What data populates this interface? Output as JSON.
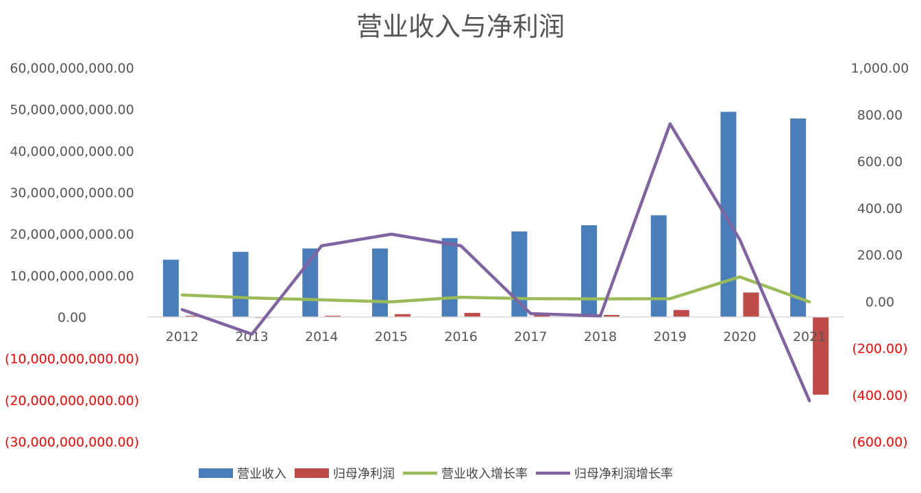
{
  "chart_data": {
    "type": "bar",
    "title": "营业收入与净利润",
    "categories": [
      "2012",
      "2013",
      "2014",
      "2015",
      "2016",
      "2017",
      "2018",
      "2019",
      "2020",
      "2021"
    ],
    "series": [
      {
        "name": "营业收入",
        "kind": "bar",
        "axis": "left",
        "color": "#4a7ebb",
        "values": [
          13800000000,
          15700000000,
          16500000000,
          16500000000,
          19000000000,
          20600000000,
          22100000000,
          24500000000,
          49400000000,
          47800000000
        ]
      },
      {
        "name": "归母净利润",
        "kind": "bar",
        "axis": "left",
        "color": "#be4b48",
        "values": [
          300000000,
          -200000000,
          300000000,
          700000000,
          1000000000,
          800000000,
          500000000,
          1700000000,
          5900000000,
          -18700000000
        ]
      },
      {
        "name": "营业收入增长率",
        "kind": "line",
        "axis": "right",
        "color": "#9bbb59",
        "values": [
          28,
          15,
          7,
          -2,
          18,
          12,
          11,
          12,
          105,
          -2
        ]
      },
      {
        "name": "归母净利润增长率",
        "kind": "line",
        "axis": "right",
        "color": "#8064a2",
        "values": [
          -35,
          -140,
          238,
          288,
          238,
          -52,
          -62,
          760,
          265,
          -425
        ]
      }
    ],
    "y_left": {
      "min": -30000000000,
      "max": 60000000000,
      "step": 10000000000,
      "ticks": [
        "60,000,000,000.00",
        "50,000,000,000.00",
        "40,000,000,000.00",
        "30,000,000,000.00",
        "20,000,000,000.00",
        "10,000,000,000.00",
        "0.00",
        "(10,000,000,000.00)",
        "(20,000,000,000.00)",
        "(30,000,000,000.00)"
      ]
    },
    "y_right": {
      "min": -600,
      "max": 1000,
      "step": 200,
      "ticks": [
        "1,000.00",
        "800.00",
        "600.00",
        "400.00",
        "200.00",
        "0.00",
        "(200.00)",
        "(400.00)",
        "(600.00)"
      ]
    },
    "negative_tick_color": "#ff0000",
    "legend_position": "bottom",
    "grid": false
  }
}
